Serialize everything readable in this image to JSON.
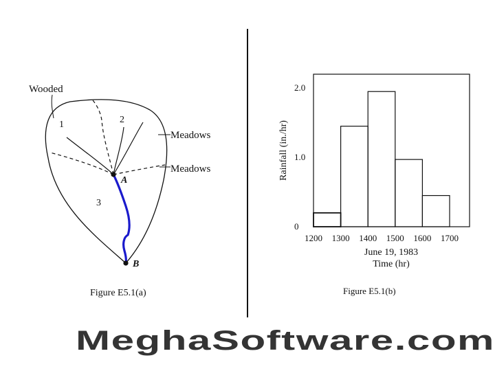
{
  "figure_a": {
    "caption": "Figure E5.1(a)",
    "labels": {
      "wooded": "Wooded",
      "meadows_1": "Meadows",
      "meadows_2": "Meadows",
      "sub1": "1",
      "sub2": "2",
      "sub3": "3",
      "point_a": "A",
      "point_b": "B"
    },
    "colors": {
      "stream": "#1a1acc",
      "outline": "#111111"
    }
  },
  "figure_b": {
    "caption": "Figure E5.1(b)",
    "chart_data": {
      "type": "bar",
      "subtype": "hyetograph",
      "title": "",
      "xlabel": "Time (hr)",
      "xlabel_date": "June 19, 1983",
      "ylabel": "Rainfall (in./hr)",
      "x_ticks": [
        "1200",
        "1300",
        "1400",
        "1500",
        "1600",
        "1700"
      ],
      "y_ticks": [
        "0",
        "1.0",
        "2.0"
      ],
      "ylim": [
        0,
        2.2
      ],
      "intervals": [
        {
          "start": 1200,
          "end": 1300,
          "value": 0.2
        },
        {
          "start": 1300,
          "end": 1400,
          "value": 1.45
        },
        {
          "start": 1400,
          "end": 1500,
          "value": 1.95
        },
        {
          "start": 1500,
          "end": 1600,
          "value": 0.97
        },
        {
          "start": 1600,
          "end": 1700,
          "value": 0.45
        }
      ],
      "grid": false
    }
  },
  "watermark": {
    "text": "MeghaSoftware.com",
    "color": "#e06070"
  }
}
